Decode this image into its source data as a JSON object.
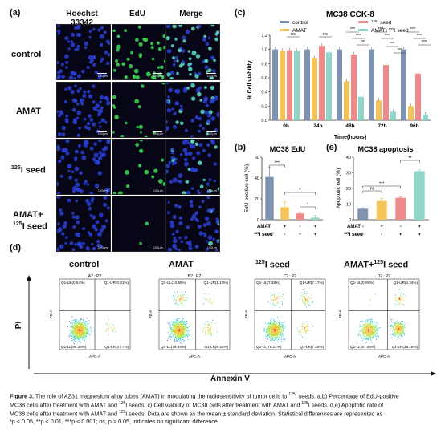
{
  "panel_labels": {
    "a": "(a)",
    "b": "(b)",
    "c": "(c)",
    "d": "(d)",
    "e": "(e)"
  },
  "panel_a": {
    "columns": [
      "Hoechst 33342",
      "EdU",
      "Merge"
    ],
    "column_colors": [
      "#2d3fb5",
      "#1f9e3a",
      "#8a2f9e"
    ],
    "rows": [
      [
        "control"
      ],
      [
        "AMAT"
      ],
      [
        "125",
        "I seed"
      ],
      [
        "AMAT+",
        "125",
        "I seed"
      ]
    ],
    "scale_text": "100μm"
  },
  "chart_c": {
    "chart_data": {
      "type": "bar",
      "title": "MC38 CCK-8",
      "ylabel": "% Cell viability",
      "xlabel": "Time(hours)",
      "categories": [
        "0h",
        "24h",
        "48h",
        "72h",
        "96h"
      ],
      "ylim": [
        0,
        1.2
      ],
      "yticks": [
        "0.0",
        "0.2",
        "0.4",
        "0.6",
        "0.8",
        "1.0",
        "1.2"
      ],
      "series": [
        {
          "name": "control",
          "color": "#7f93b0",
          "values": [
            1.0,
            1.0,
            1.0,
            1.0,
            1.0
          ]
        },
        {
          "name": "AMAT",
          "color": "#f2c45a",
          "values": [
            0.98,
            0.88,
            0.55,
            0.28,
            0.2
          ]
        },
        {
          "name": "125I seed",
          "color": "#ef8a8a",
          "values": [
            0.99,
            1.05,
            0.93,
            0.78,
            0.66
          ]
        },
        {
          "name": "AMAT+125I seed",
          "color": "#8fd6c8",
          "values": [
            0.98,
            0.96,
            0.33,
            0.12,
            0.08
          ]
        }
      ],
      "legend": [
        {
          "sup": "",
          "text": "control"
        },
        {
          "sup": "",
          "text": "AMAT"
        },
        {
          "sup": "125",
          "text": "I seed"
        },
        {
          "sup": "125",
          "text": "AMAT+",
          "after": "I seed"
        }
      ],
      "legend_position": "top"
    },
    "stars": [
      "ns",
      "ns",
      "***",
      "***",
      "***",
      "***",
      "***",
      "***",
      "***",
      "***",
      "***",
      "***"
    ]
  },
  "chart_b": {
    "chart_data": {
      "type": "bar",
      "title": "MC38 EdU",
      "ylabel": "EdU-positive cell (%)",
      "ylim": [
        0,
        60
      ],
      "yticks": [
        "0",
        "20",
        "40",
        "60"
      ],
      "categories": [
        "control",
        "AMAT",
        "125I seed",
        "AMAT+125I seed"
      ],
      "colors": [
        "#7f93b0",
        "#f2c45a",
        "#ef8a8a",
        "#8fd6c8"
      ],
      "values": [
        41,
        12,
        6,
        2
      ],
      "errors": [
        9,
        5,
        1,
        2
      ]
    },
    "stars": [
      "***",
      "*",
      "*"
    ],
    "row_labels": {
      "amat": "AMAT",
      "seed_sup": "125",
      "seed": "I seed"
    },
    "signs_amat": [
      "-",
      "+",
      "-",
      "+"
    ],
    "signs_seed": [
      "-",
      "-",
      "+",
      "+"
    ]
  },
  "chart_e": {
    "chart_data": {
      "type": "bar",
      "title": "MC38 apoptosis",
      "ylabel": "Apoptotic cell (%)",
      "ylim": [
        0,
        40
      ],
      "yticks": [
        "0",
        "10",
        "20",
        "30",
        "40"
      ],
      "categories": [
        "control",
        "AMAT",
        "125I seed",
        "AMAT+125I seed"
      ],
      "colors": [
        "#7f93b0",
        "#f2c45a",
        "#ef8a8a",
        "#8fd6c8"
      ],
      "values": [
        7,
        12,
        14,
        31
      ],
      "errors": [
        0.4,
        1.5,
        0.5,
        0.8
      ]
    },
    "stars": [
      "ns",
      "***",
      "**"
    ],
    "row_labels": {
      "amat": "AMAT",
      "seed_sup": "125",
      "seed": "I seed"
    },
    "signs_amat": [
      "-",
      "+",
      "-",
      "+"
    ],
    "signs_seed": [
      "-",
      "-",
      "+",
      "+"
    ]
  },
  "panel_d": {
    "titles": [
      [
        "control"
      ],
      [
        "AMAT"
      ],
      [
        "125",
        "I seed"
      ],
      [
        "AMAT+",
        "125",
        "I seed"
      ]
    ],
    "plot_headers": [
      "A2 : P2",
      "B2 : P2",
      "C2 : P2",
      "D2 : P2"
    ],
    "quadrants": [
      {
        "ul": "Q1-UL(0.54%)",
        "ur": "Q1-UR(0.31%)",
        "ll": "Q1-LL(96.38%)",
        "lr": "Q1-LR(3.77%)"
      },
      {
        "ul": "Q1-UL(10.65%)",
        "ur": "Q1-UR(1.10%)",
        "ll": "Q1-LL(79.84%)",
        "lr": "Q1-LR(8.42%)"
      },
      {
        "ul": "Q1-UL(7.38%)",
        "ur": "Q1-UR(7.17%)",
        "ll": "Q1-LL(78.21%)",
        "lr": "Q1-LR(7.25%)"
      },
      {
        "ul": "Q1-UL(0.06%)",
        "ur": "Q1-UR(4.34%)",
        "ll": "Q1-LL(57.45%)",
        "lr": "Q1-LR(38.16%)"
      }
    ],
    "y_axis_inner": "PE-A",
    "x_axis_inner": "APC-A",
    "y_axis_outer": "PI",
    "x_axis_outer": "Annexin V"
  },
  "caption": {
    "lead": "Figure 3.",
    "lines": [
      [
        "The role of AZ31 magnesium alloy tubes (AMAT) in modulating the radiosensitivity of tumor cells to ",
        "125",
        "I seeds. a,b) Percentage of EdU-positive"
      ],
      [
        "MC38 cells after treatment with AMAT and ",
        "125",
        "I seeds. c) Cell viability of MC38 cells after treatment with AMAT and ",
        "125",
        "I seeds. d,e) Apoptotic rate of"
      ],
      [
        "MC38 cells after treatment with AMAT and ",
        "125",
        "I seeds. Data are shown as the mean ± standard deviation. Statistical differences are represented as"
      ],
      [
        "*p < 0.05, **p < 0.01, ***p < 0.001; ns, p > 0.05, indicates no significant difference."
      ]
    ]
  }
}
